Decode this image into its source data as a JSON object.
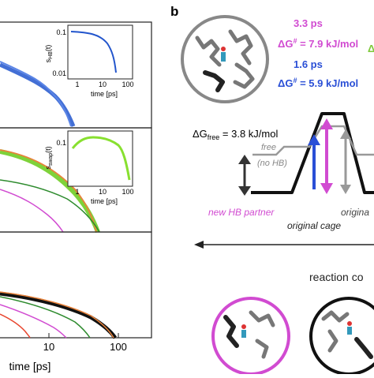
{
  "panel_b_label": "b",
  "left_panel": {
    "x_axis": {
      "label": "time [ps]",
      "ticks": [
        "10",
        "100"
      ]
    },
    "insets": [
      {
        "ylabel_main": "s",
        "ylabel_sub": "HB",
        "ylabel_arg": "(t)",
        "yticks": [
          "0.1",
          "0.01"
        ],
        "xticks": [
          "1",
          "10",
          "100"
        ],
        "xlabel": "time [ps]",
        "color": "#2255cc"
      },
      {
        "ylabel_main": "s",
        "ylabel_sub": "swap",
        "ylabel_arg": "(t)",
        "yticks": [
          "0.1"
        ],
        "xticks": [
          "1",
          "10",
          "100"
        ],
        "xlabel": "time [ps]",
        "color": "#88e030"
      }
    ],
    "colors": {
      "blue": "#2f5fd0",
      "green_band": "#7ed23a",
      "orange": "#e8823a",
      "dark_green": "#2e8b2e",
      "magenta": "#d14bd1",
      "red": "#e8452e",
      "black": "#111111"
    }
  },
  "panel_b": {
    "rate_magenta": {
      "time": "3.3 ps",
      "dg_symbol": "ΔG",
      "dg_sup": "#",
      "dg_value": " = 7.9 kJ/mol",
      "color": "#d14bd1"
    },
    "rate_blue": {
      "time": "1.6 ps",
      "dg_symbol": "ΔG",
      "dg_sup": "#",
      "dg_value": " = 5.9 kJ/mol",
      "color": "#2a4fd6"
    },
    "dg_free": {
      "symbol": "ΔG",
      "sub": "free",
      "value": " = 3.8 kJ/mol"
    },
    "free_label": "free",
    "no_hb_label": "(no HB)",
    "new_partner_label": "new HB partner",
    "original_cage_label": "original cage",
    "original_truncated": "origina",
    "reaction_coord_label": "reaction co",
    "truncated_delta": "Δ",
    "colors": {
      "magenta": "#d14bd1",
      "blue": "#2a4fd6",
      "grey": "#999999",
      "dark_grey": "#333333",
      "green_partial": "#7ec83a"
    }
  }
}
